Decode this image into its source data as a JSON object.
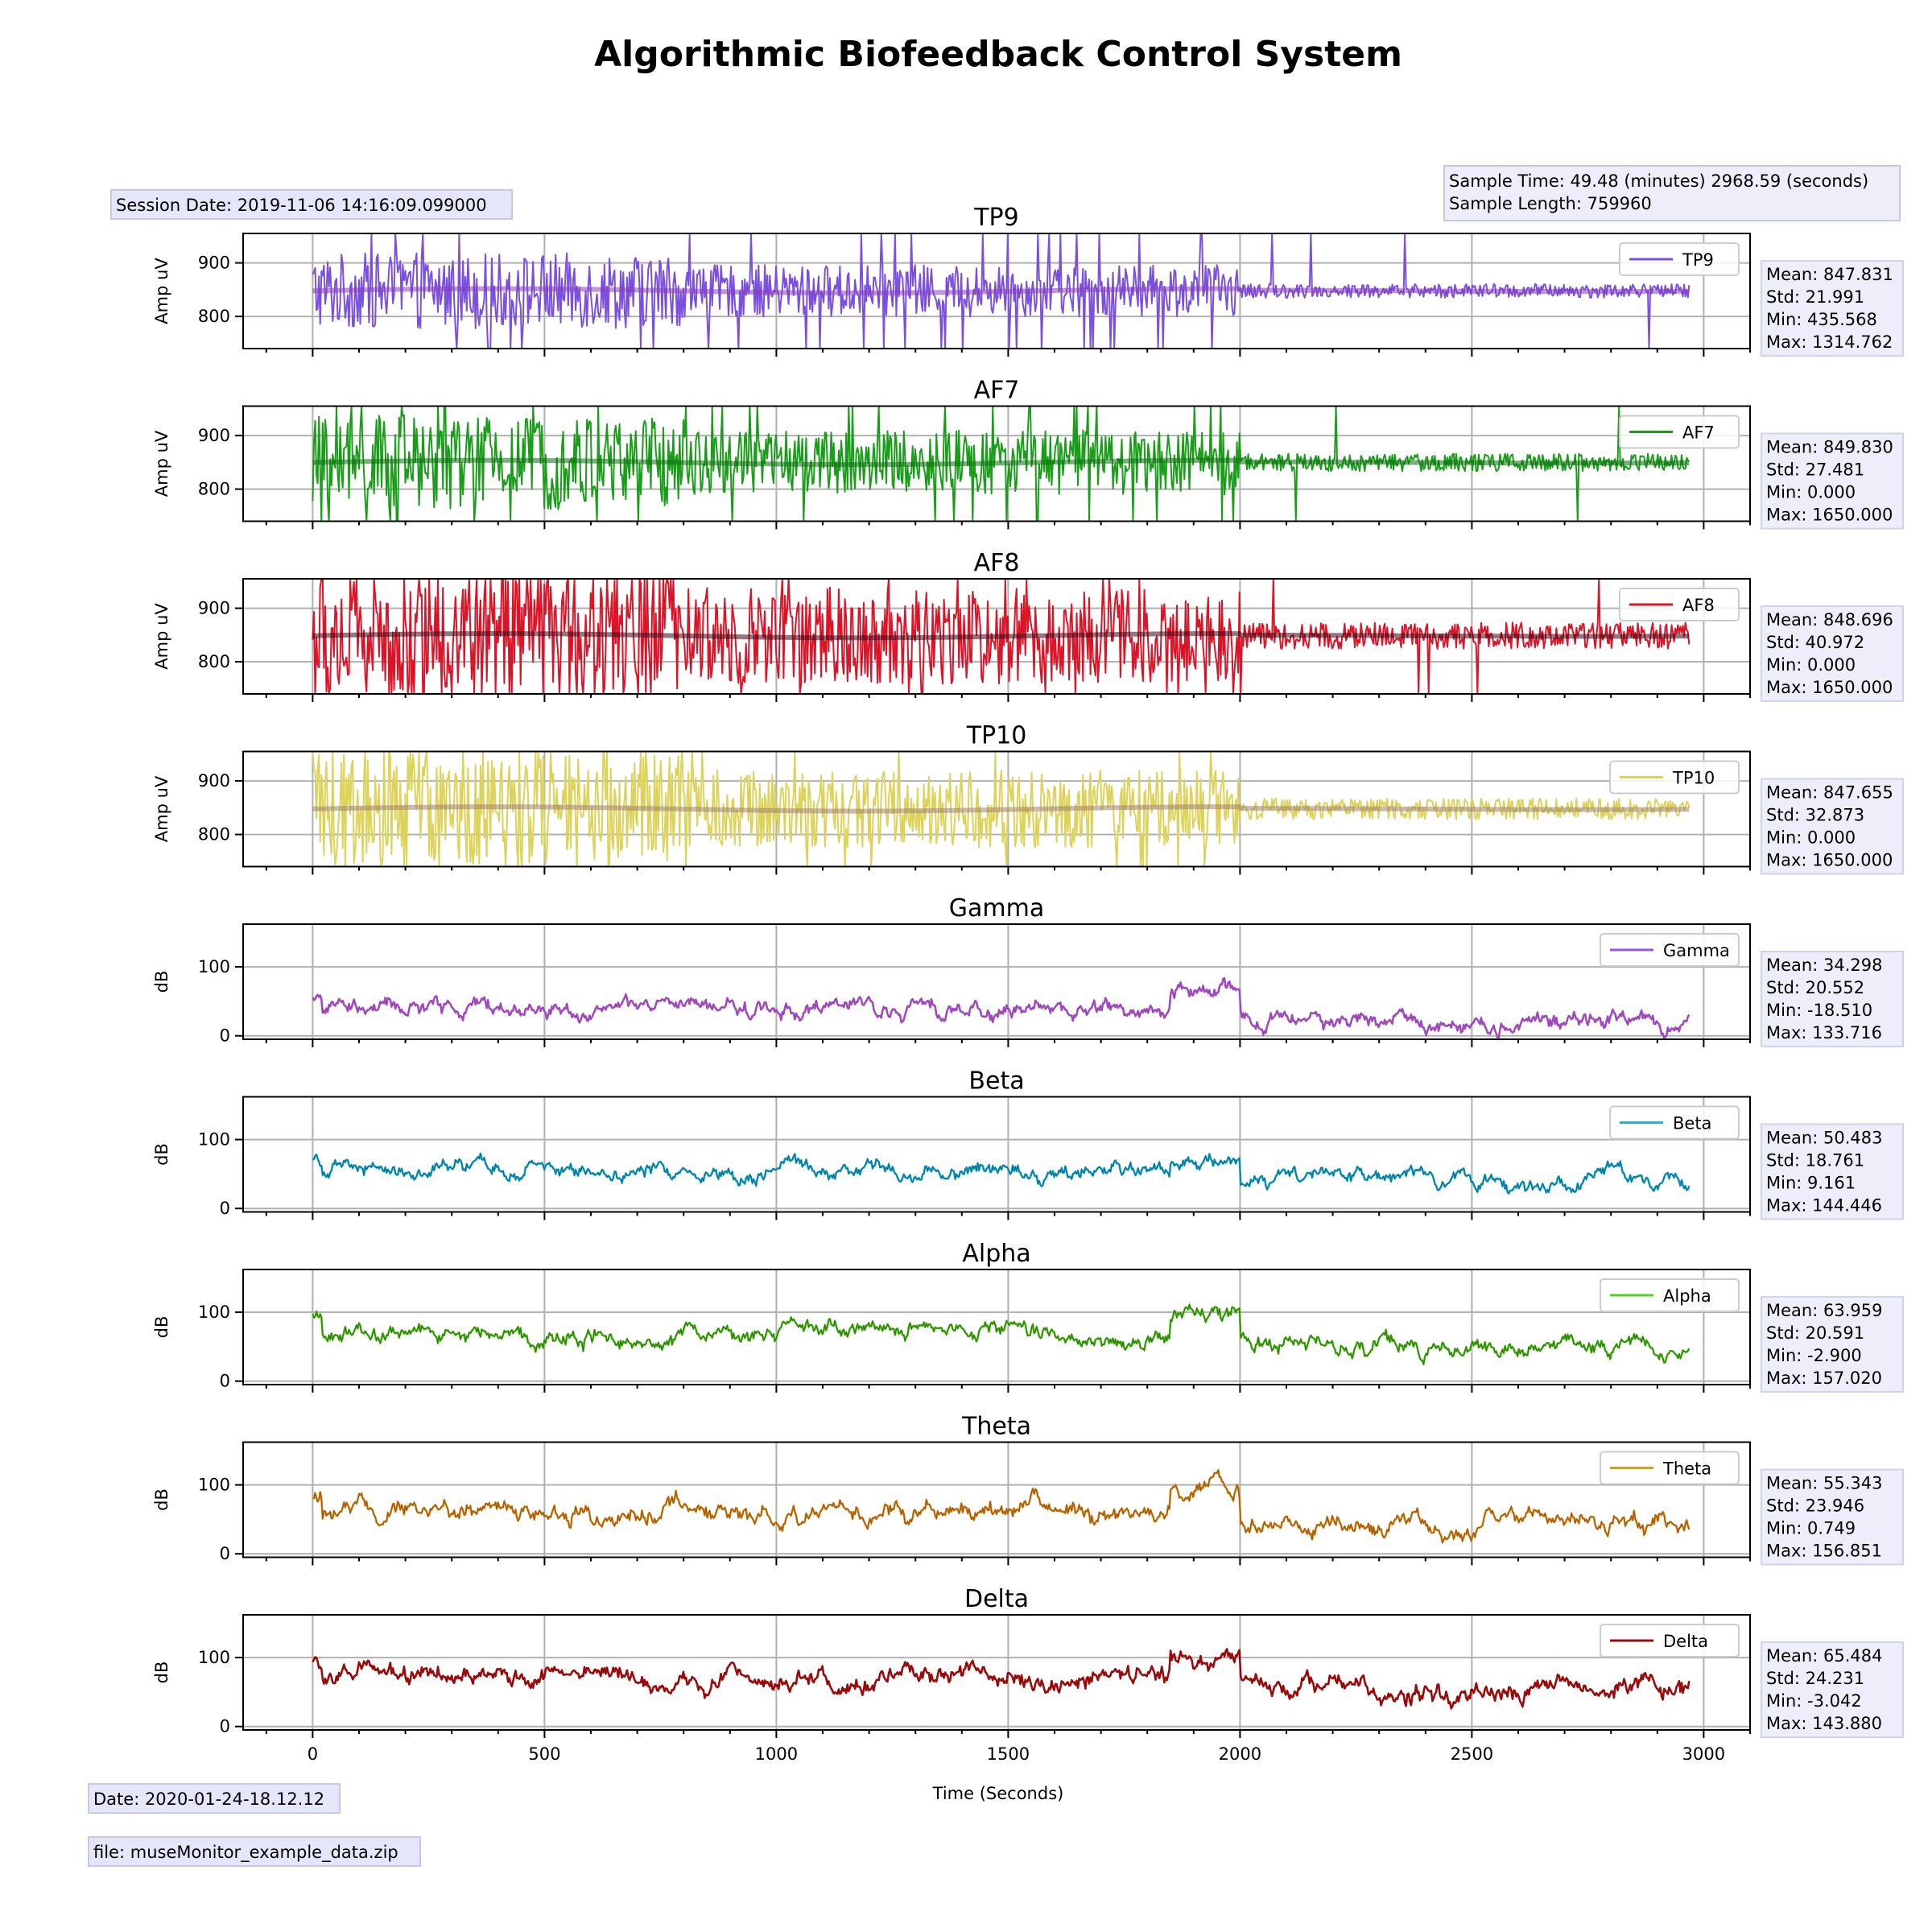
{
  "title": "Algorithmic Biofeedback Control System",
  "session_date": "Session Date: 2019-11-06 14:16:09.099000",
  "sample_info": [
    "Sample Time: 49.48 (minutes) 2968.59 (seconds)",
    "Sample Length: 759960"
  ],
  "footer_date": "Date: 2020-01-24-18.12.12",
  "footer_file": "file: museMonitor_example_data.zip",
  "chart_data": {
    "type": "line",
    "xlabel": "Time (Seconds)",
    "xlim": [
      -150,
      3100
    ],
    "xticks": [
      0,
      500,
      1000,
      1500,
      2000,
      2500,
      3000
    ],
    "x_end": 2968.59,
    "grid": true,
    "legend_position": "upper-right",
    "panels": [
      {
        "key": "tp9",
        "title": "TP9",
        "ylabel": "Amp uV",
        "ylim": [
          740,
          955
        ],
        "yticks": [
          800,
          900
        ],
        "color": "#7b4fe0",
        "mean_color": "#8a3fb8",
        "legend": "TP9",
        "stats": [
          "Mean: 847.831",
          "Std: 21.991",
          "Min: 435.568",
          "Max: 1314.762"
        ],
        "mean": 847.831,
        "std": 21.991,
        "min": 435.568,
        "max": 1314.762
      },
      {
        "key": "af7",
        "title": "AF7",
        "ylabel": "Amp uV",
        "ylim": [
          740,
          955
        ],
        "yticks": [
          800,
          900
        ],
        "color": "#1a9e1a",
        "mean_color": "#0e6e12",
        "legend": "AF7",
        "stats": [
          "Mean: 849.830",
          "Std: 27.481",
          "Min: 0.000",
          "Max: 1650.000"
        ],
        "mean": 849.83,
        "std": 27.481,
        "min": 0,
        "max": 1650
      },
      {
        "key": "af8",
        "title": "AF8",
        "ylabel": "Amp uV",
        "ylim": [
          740,
          955
        ],
        "yticks": [
          800,
          900
        ],
        "color": "#dc1428",
        "mean_color": "#3a0a18",
        "legend": "AF8",
        "stats": [
          "Mean: 848.696",
          "Std: 40.972",
          "Min: 0.000",
          "Max: 1650.000"
        ],
        "mean": 848.696,
        "std": 40.972,
        "min": 0,
        "max": 1650
      },
      {
        "key": "tp10",
        "title": "TP10",
        "ylabel": "Amp uV",
        "ylim": [
          740,
          955
        ],
        "yticks": [
          800,
          900
        ],
        "color": "#ddd35a",
        "mean_color": "#a0826e",
        "legend": "TP10",
        "stats": [
          "Mean: 847.655",
          "Std: 32.873",
          "Min: 0.000",
          "Max: 1650.000"
        ],
        "mean": 847.655,
        "std": 32.873,
        "min": 0,
        "max": 1650
      },
      {
        "key": "gamma",
        "title": "Gamma",
        "ylabel": "dB",
        "ylim": [
          -5,
          162
        ],
        "yticks": [
          0,
          100
        ],
        "color": "#9a55db",
        "mean_color": "#a8409a",
        "legend": "Gamma",
        "stats": [
          "Mean: 34.298",
          "Std: 20.552",
          "Min: -18.510",
          "Max: 133.716"
        ],
        "mean": 34.298,
        "std": 20.552,
        "min": -18.51,
        "max": 133.716
      },
      {
        "key": "beta",
        "title": "Beta",
        "ylabel": "dB",
        "ylim": [
          -5,
          162
        ],
        "yticks": [
          0,
          100
        ],
        "color": "#1ab4dc",
        "mean_color": "#0c5a78",
        "legend": "Beta",
        "stats": [
          "Mean: 50.483",
          "Std: 18.761",
          "Min: 9.161",
          "Max: 144.446"
        ],
        "mean": 50.483,
        "std": 18.761,
        "min": 9.161,
        "max": 144.446
      },
      {
        "key": "alpha",
        "title": "Alpha",
        "ylabel": "dB",
        "ylim": [
          -5,
          162
        ],
        "yticks": [
          0,
          100
        ],
        "color": "#55d21e",
        "mean_color": "#2a5a10",
        "legend": "Alpha",
        "stats": [
          "Mean: 63.959",
          "Std: 20.591",
          "Min: -2.900",
          "Max: 157.020"
        ],
        "mean": 63.959,
        "std": 20.591,
        "min": -2.9,
        "max": 157.02
      },
      {
        "key": "theta",
        "title": "Theta",
        "ylabel": "dB",
        "ylim": [
          -5,
          162
        ],
        "yticks": [
          0,
          100
        ],
        "color": "#d2a01a",
        "mean_color": "#a03214",
        "legend": "Theta",
        "stats": [
          "Mean: 55.343",
          "Std: 23.946",
          "Min: 0.749",
          "Max: 156.851"
        ],
        "mean": 55.343,
        "std": 23.946,
        "min": 0.749,
        "max": 156.851
      },
      {
        "key": "delta",
        "title": "Delta",
        "ylabel": "dB",
        "ylim": [
          -5,
          162
        ],
        "yticks": [
          0,
          100
        ],
        "color": "#9a0a0a",
        "mean_color": "#9a0a0a",
        "legend": "Delta",
        "stats": [
          "Mean: 65.484",
          "Std: 24.231",
          "Min: -3.042",
          "Max: 143.880"
        ],
        "mean": 65.484,
        "std": 24.231,
        "min": -3.042,
        "max": 143.88
      }
    ]
  }
}
